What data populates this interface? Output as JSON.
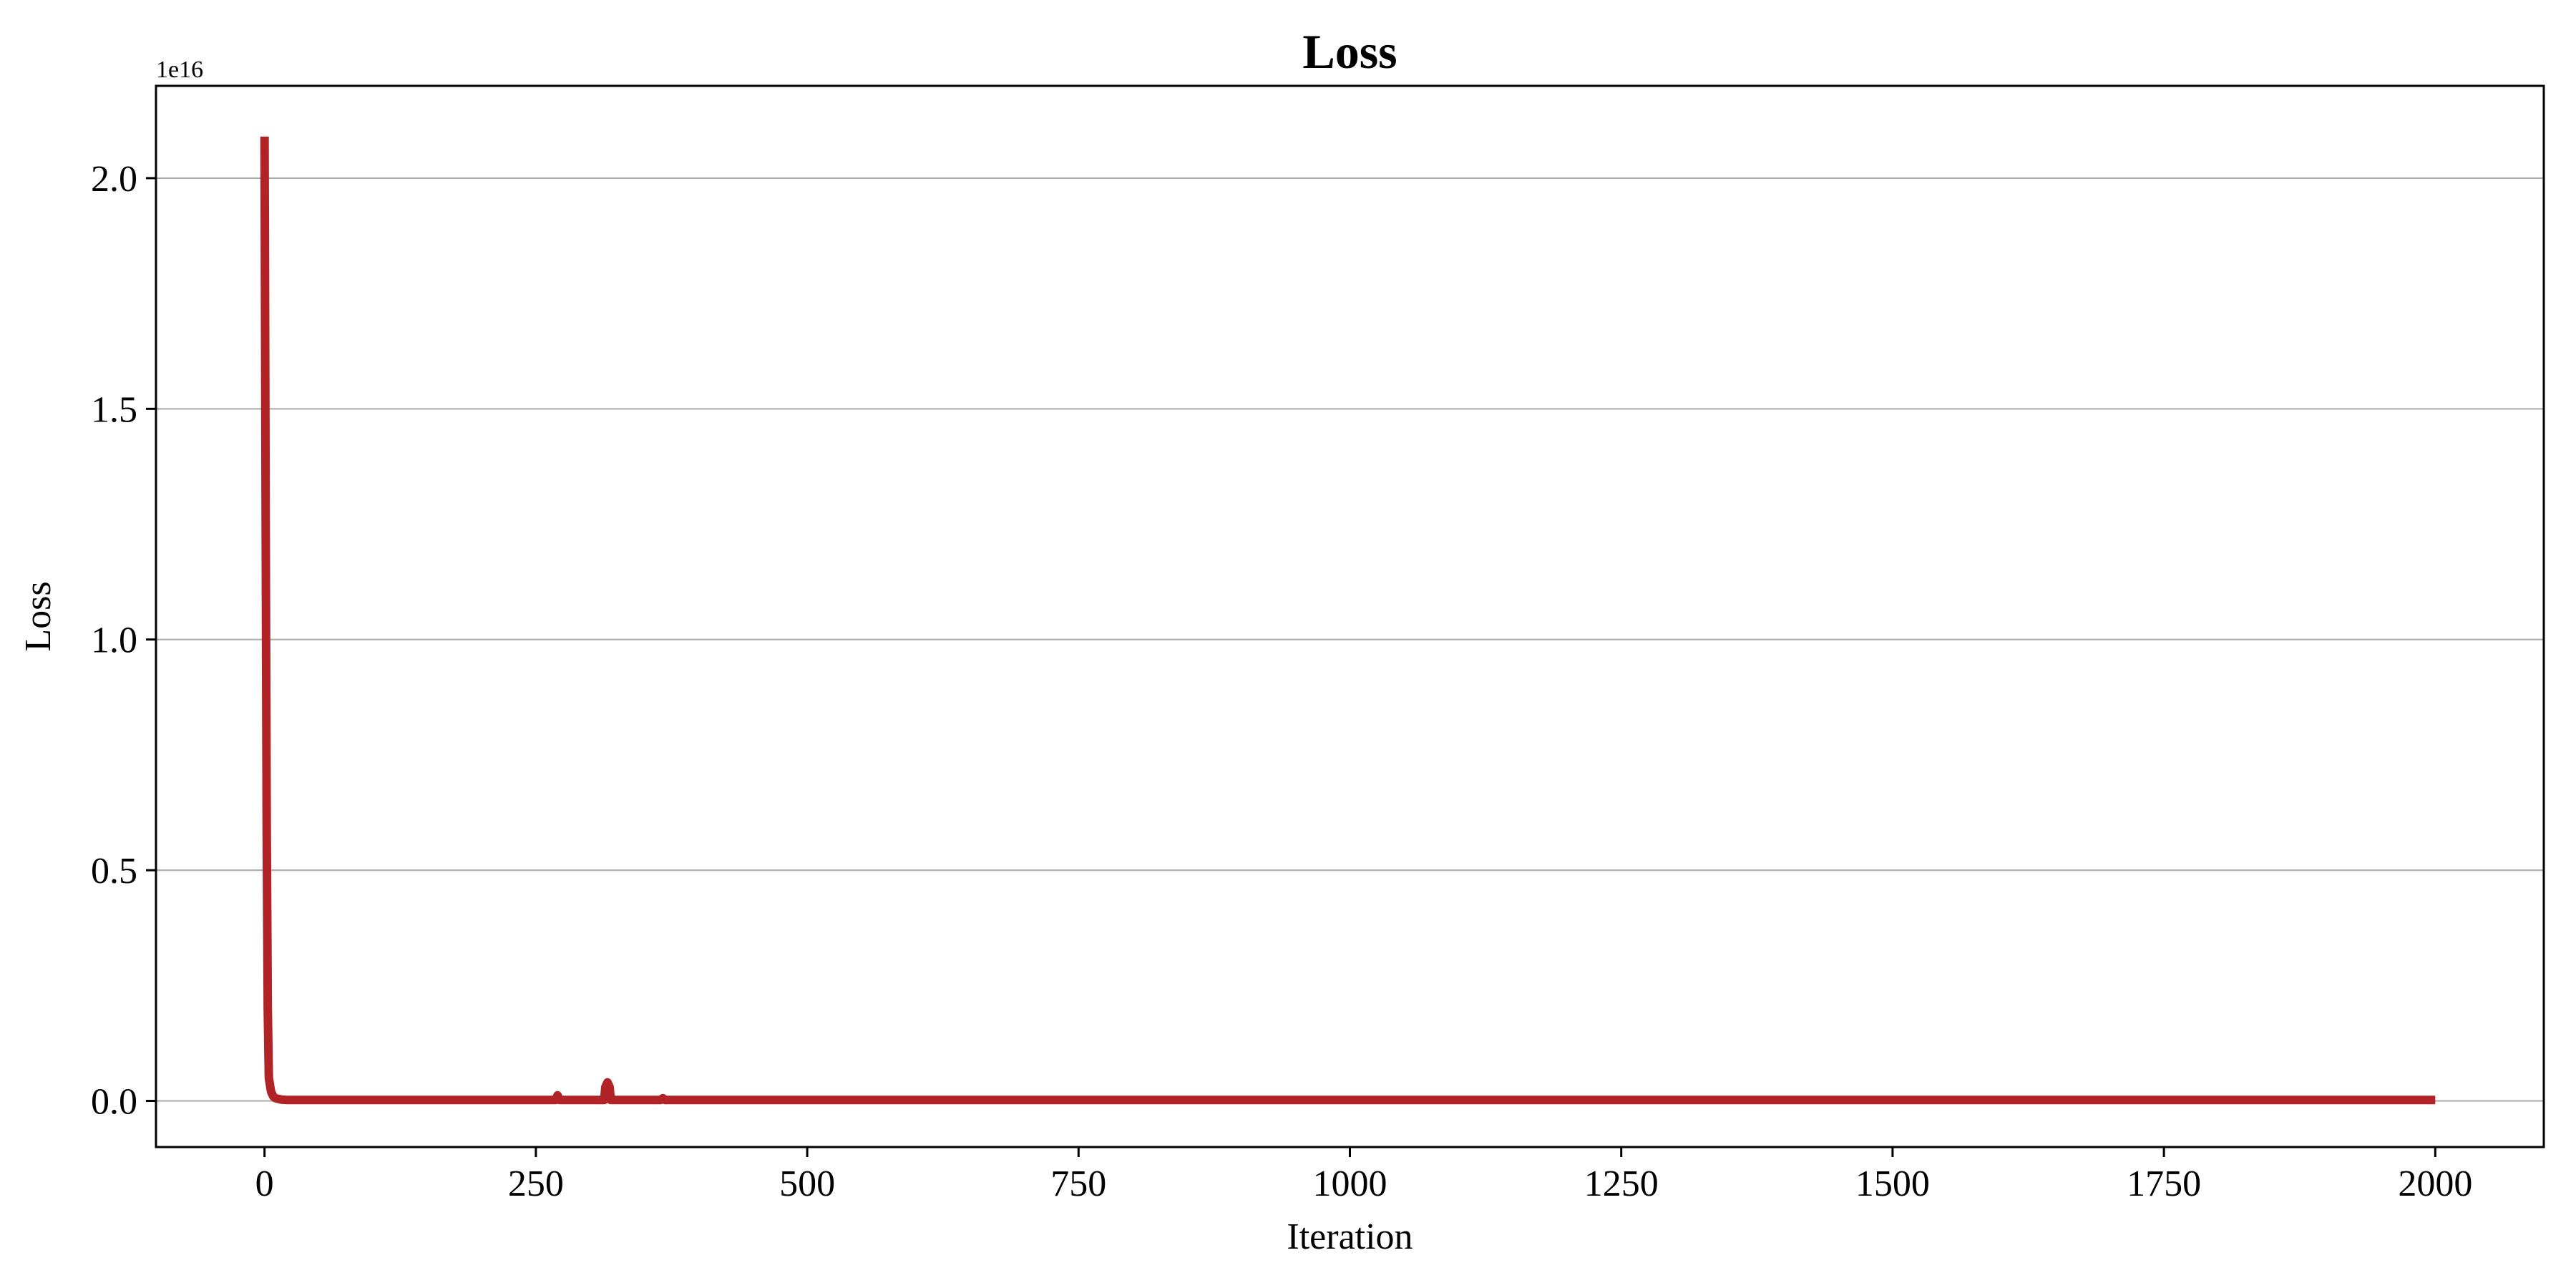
{
  "chart_data": {
    "type": "line",
    "title": "Loss",
    "xlabel": "Iteration",
    "ylabel": "Loss",
    "y_offset_label": "1e16",
    "xlim": [
      -100,
      2100
    ],
    "ylim": [
      -0.1,
      2.2
    ],
    "y_scale_factor": 1e+16,
    "xticks": [
      0,
      250,
      500,
      750,
      1000,
      1250,
      1500,
      1750,
      2000
    ],
    "xtick_labels": [
      "0",
      "250",
      "500",
      "750",
      "1000",
      "1250",
      "1500",
      "1750",
      "2000"
    ],
    "yticks": [
      0.0,
      0.5,
      1.0,
      1.5,
      2.0
    ],
    "ytick_labels": [
      "0.0",
      "0.5",
      "1.0",
      "1.5",
      "2.0"
    ],
    "grid": "y-axis horizontal lines",
    "series": [
      {
        "color": "#b22328",
        "x": [
          0,
          1,
          2,
          3,
          4,
          6,
          8,
          10,
          15,
          20,
          50,
          100,
          150,
          200,
          250,
          268,
          270,
          272,
          274,
          300,
          313,
          314,
          316,
          318,
          319,
          320,
          350,
          365,
          367,
          369,
          400,
          500,
          750,
          1000,
          1250,
          1500,
          1750,
          2000
        ],
        "y": [
          2.09,
          1.3,
          0.6,
          0.2,
          0.05,
          0.02,
          0.01,
          0.006,
          0.003,
          0.002,
          0.002,
          0.002,
          0.002,
          0.002,
          0.002,
          0.002,
          0.012,
          0.002,
          0.002,
          0.002,
          0.002,
          0.03,
          0.04,
          0.03,
          0.002,
          0.002,
          0.002,
          0.002,
          0.006,
          0.002,
          0.002,
          0.002,
          0.002,
          0.002,
          0.002,
          0.002,
          0.002,
          0.002
        ]
      }
    ]
  }
}
